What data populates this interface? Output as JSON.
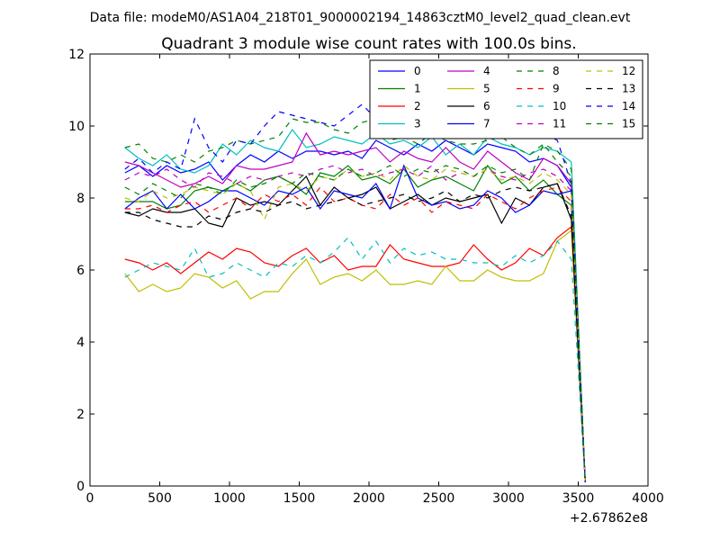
{
  "chart_data": {
    "type": "line",
    "suptitle": "Data file: modeM0/AS1A04_218T01_9000002194_14863cztM0_level2_quad_clean.evt",
    "title": "Quadrant 3 module wise count rates with 100.0s bins.",
    "xlabel": "",
    "ylabel": "",
    "x_offset_label": "+2.67862e8",
    "xlim": [
      0,
      4000
    ],
    "ylim": [
      0,
      12
    ],
    "xticks": [
      0,
      500,
      1000,
      1500,
      2000,
      2500,
      3000,
      3500,
      4000
    ],
    "yticks": [
      0,
      2,
      4,
      6,
      8,
      10,
      12
    ],
    "grid": false,
    "legend": {
      "placement": "top-right",
      "columns": 4
    },
    "x": [
      250,
      350,
      450,
      550,
      650,
      750,
      850,
      950,
      1050,
      1150,
      1250,
      1350,
      1450,
      1550,
      1650,
      1750,
      1850,
      1950,
      2050,
      2150,
      2250,
      2350,
      2450,
      2550,
      2650,
      2750,
      2850,
      2950,
      3050,
      3150,
      3250,
      3350,
      3450,
      3550
    ],
    "series": [
      {
        "name": "0",
        "color": "#0000ff",
        "dash": "solid",
        "values": [
          8.7,
          8.9,
          8.6,
          8.9,
          8.7,
          8.8,
          9.0,
          8.5,
          8.9,
          9.2,
          9.0,
          9.3,
          9.1,
          9.3,
          9.3,
          9.2,
          9.3,
          9.1,
          9.6,
          9.4,
          9.2,
          9.5,
          9.3,
          9.6,
          9.4,
          9.2,
          9.5,
          9.4,
          9.3,
          9.0,
          9.1,
          8.9,
          8.3,
          0.1
        ]
      },
      {
        "name": "1",
        "color": "#008000",
        "dash": "solid",
        "values": [
          7.9,
          7.9,
          7.9,
          7.7,
          7.8,
          8.2,
          8.3,
          8.2,
          8.4,
          8.2,
          8.5,
          8.6,
          8.4,
          8.1,
          8.7,
          8.6,
          8.9,
          8.5,
          8.6,
          8.4,
          8.8,
          8.3,
          8.5,
          8.6,
          8.4,
          8.2,
          8.9,
          8.4,
          8.6,
          8.2,
          8.5,
          8.1,
          7.8,
          0.1
        ]
      },
      {
        "name": "2",
        "color": "#ff0000",
        "dash": "solid",
        "values": [
          6.3,
          6.2,
          6.0,
          6.2,
          5.9,
          6.2,
          6.5,
          6.3,
          6.6,
          6.5,
          6.2,
          6.1,
          6.4,
          6.6,
          6.2,
          6.4,
          6.0,
          6.1,
          6.1,
          6.7,
          6.3,
          6.2,
          6.1,
          6.1,
          6.2,
          6.7,
          6.3,
          6.0,
          6.2,
          6.6,
          6.4,
          6.9,
          7.2,
          0.1
        ]
      },
      {
        "name": "3",
        "color": "#00bfbf",
        "dash": "solid",
        "values": [
          9.4,
          9.1,
          8.9,
          9.2,
          8.8,
          8.7,
          8.9,
          9.5,
          9.2,
          9.6,
          9.4,
          9.3,
          9.9,
          9.4,
          9.5,
          9.7,
          9.6,
          9.5,
          9.8,
          9.5,
          9.6,
          9.4,
          9.7,
          9.2,
          9.5,
          9.2,
          9.7,
          9.5,
          9.4,
          9.2,
          9.4,
          9.3,
          9.0,
          0.1
        ]
      },
      {
        "name": "4",
        "color": "#bf00bf",
        "dash": "solid",
        "values": [
          9.0,
          8.9,
          8.7,
          8.5,
          8.3,
          8.4,
          8.6,
          8.4,
          8.9,
          8.8,
          8.8,
          8.9,
          9.0,
          9.8,
          9.2,
          9.3,
          9.2,
          9.3,
          9.4,
          9.0,
          9.3,
          9.1,
          9.0,
          9.4,
          9.0,
          8.8,
          9.3,
          9.0,
          8.7,
          8.5,
          9.1,
          8.9,
          8.4,
          0.1
        ]
      },
      {
        "name": "5",
        "color": "#bfbf00",
        "dash": "solid",
        "values": [
          5.9,
          5.4,
          5.6,
          5.4,
          5.5,
          5.9,
          5.8,
          5.5,
          5.7,
          5.2,
          5.4,
          5.4,
          5.9,
          6.3,
          5.6,
          5.8,
          5.9,
          5.7,
          6.0,
          5.6,
          5.6,
          5.7,
          5.6,
          6.1,
          5.7,
          5.7,
          6.0,
          5.8,
          5.7,
          5.7,
          5.9,
          6.8,
          7.1,
          0.1
        ]
      },
      {
        "name": "6",
        "color": "#000000",
        "dash": "solid",
        "values": [
          7.6,
          7.5,
          7.7,
          7.6,
          7.6,
          7.7,
          7.3,
          7.2,
          8.0,
          7.8,
          7.9,
          7.8,
          8.2,
          8.6,
          7.8,
          8.3,
          8.0,
          8.1,
          8.3,
          7.7,
          7.9,
          8.1,
          7.8,
          8.0,
          7.9,
          8.0,
          8.1,
          7.3,
          8.0,
          7.8,
          8.3,
          8.4,
          7.4,
          0.1
        ]
      },
      {
        "name": "7",
        "color": "#0000ff",
        "dash": "solid",
        "values": [
          7.7,
          8.0,
          8.2,
          7.7,
          8.1,
          7.7,
          7.9,
          8.2,
          8.2,
          8.0,
          7.8,
          8.2,
          8.1,
          8.3,
          7.7,
          8.2,
          8.1,
          8.0,
          8.4,
          7.7,
          8.9,
          8.0,
          7.8,
          7.9,
          7.7,
          7.8,
          8.2,
          8.0,
          7.6,
          7.8,
          8.2,
          8.1,
          8.2,
          0.1
        ]
      },
      {
        "name": "8",
        "color": "#008000",
        "dash": "dashed",
        "values": [
          9.4,
          9.5,
          9.1,
          9.0,
          9.2,
          9.0,
          9.3,
          9.4,
          9.6,
          9.5,
          9.6,
          9.7,
          10.2,
          10.1,
          10.1,
          9.9,
          9.8,
          10.1,
          10.2,
          9.6,
          9.7,
          9.5,
          9.8,
          9.6,
          9.5,
          9.5,
          9.6,
          9.7,
          9.4,
          9.2,
          9.5,
          9.3,
          8.8,
          0.1
        ]
      },
      {
        "name": "9",
        "color": "#ff0000",
        "dash": "dashed",
        "values": [
          7.7,
          7.7,
          7.8,
          7.6,
          7.8,
          7.9,
          7.6,
          7.8,
          8.0,
          7.7,
          8.1,
          7.9,
          8.1,
          7.8,
          8.3,
          7.9,
          8.0,
          7.8,
          7.7,
          8.1,
          7.8,
          8.0,
          7.6,
          7.9,
          7.8,
          7.7,
          8.1,
          7.9,
          7.7,
          8.0,
          8.2,
          8.3,
          7.9,
          0.1
        ]
      },
      {
        "name": "10",
        "color": "#00bfbf",
        "dash": "dashed",
        "values": [
          5.8,
          6.0,
          6.2,
          6.1,
          6.0,
          6.6,
          5.8,
          5.9,
          6.2,
          6.0,
          5.8,
          6.2,
          6.1,
          6.4,
          6.2,
          6.5,
          6.9,
          6.3,
          6.8,
          6.2,
          6.6,
          6.4,
          6.5,
          6.3,
          6.3,
          6.2,
          6.2,
          6.1,
          6.4,
          6.2,
          6.4,
          6.8,
          6.3,
          0.1
        ]
      },
      {
        "name": "11",
        "color": "#bf00bf",
        "dash": "dashed",
        "values": [
          8.5,
          8.7,
          8.6,
          8.8,
          8.5,
          8.3,
          8.7,
          8.6,
          8.4,
          8.6,
          8.5,
          8.6,
          8.7,
          8.6,
          8.8,
          8.9,
          8.7,
          8.8,
          8.6,
          8.7,
          8.8,
          8.6,
          8.9,
          8.5,
          8.7,
          8.6,
          8.8,
          8.6,
          8.5,
          8.7,
          8.8,
          8.6,
          8.2,
          0.1
        ]
      },
      {
        "name": "12",
        "color": "#bfbf00",
        "dash": "dashed",
        "values": [
          8.0,
          7.9,
          8.2,
          8.0,
          8.1,
          8.3,
          8.2,
          8.1,
          8.4,
          8.2,
          7.4,
          8.3,
          8.4,
          8.2,
          8.6,
          8.5,
          8.8,
          8.6,
          8.7,
          8.5,
          8.9,
          8.6,
          8.5,
          8.8,
          8.7,
          8.6,
          8.8,
          8.5,
          8.6,
          8.4,
          8.7,
          8.5,
          8.1,
          0.1
        ]
      },
      {
        "name": "13",
        "color": "#000000",
        "dash": "dashed",
        "values": [
          7.6,
          7.6,
          7.4,
          7.3,
          7.2,
          7.2,
          7.5,
          7.4,
          7.6,
          7.7,
          7.6,
          7.8,
          7.9,
          7.7,
          7.8,
          7.9,
          8.0,
          7.8,
          7.9,
          8.0,
          8.1,
          7.9,
          8.0,
          8.2,
          7.9,
          8.1,
          8.0,
          8.2,
          8.3,
          8.2,
          8.3,
          8.4,
          7.5,
          0.1
        ]
      },
      {
        "name": "14",
        "color": "#0000ff",
        "dash": "dashed",
        "values": [
          8.8,
          9.1,
          8.7,
          9.0,
          8.8,
          10.2,
          9.4,
          9.0,
          9.6,
          9.5,
          10.0,
          10.4,
          10.3,
          10.2,
          10.1,
          10.0,
          10.3,
          10.6,
          10.2,
          10.3,
          10.4,
          10.0,
          10.9,
          10.2,
          10.3,
          10.1,
          10.2,
          10.0,
          9.9,
          10.1,
          9.8,
          9.6,
          8.4,
          0.1
        ]
      },
      {
        "name": "15",
        "color": "#008000",
        "dash": "dashed",
        "values": [
          8.3,
          8.1,
          8.4,
          8.2,
          8.0,
          8.4,
          8.3,
          8.1,
          8.5,
          8.3,
          8.4,
          8.6,
          8.4,
          8.7,
          8.6,
          8.5,
          8.8,
          8.6,
          8.7,
          8.9,
          8.6,
          8.8,
          8.7,
          8.9,
          8.8,
          8.6,
          8.9,
          8.7,
          8.8,
          8.5,
          9.5,
          9.0,
          8.6,
          0.1
        ]
      }
    ]
  }
}
